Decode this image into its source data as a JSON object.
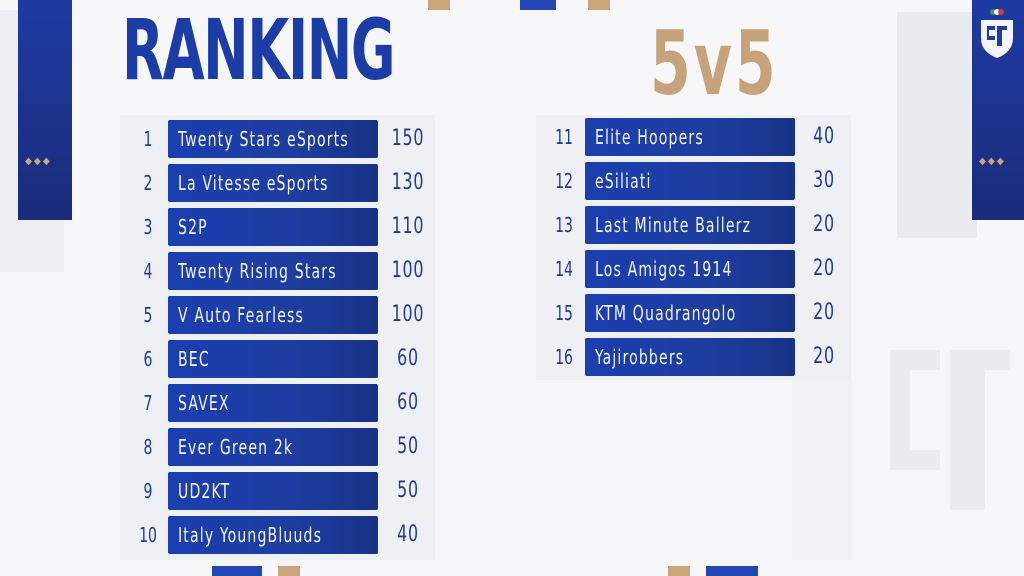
{
  "header": {
    "title": "RANKING",
    "mode": "5v5"
  },
  "colors": {
    "primary_blue": "#1c3da7",
    "gold": "#c6a37a",
    "background": "#f7f7f9"
  },
  "ranking_left": [
    {
      "rank": "1",
      "team": "Twenty Stars eSports",
      "points": "150"
    },
    {
      "rank": "2",
      "team": "La Vitesse eSports",
      "points": "130"
    },
    {
      "rank": "3",
      "team": "S2P",
      "points": "110"
    },
    {
      "rank": "4",
      "team": "Twenty Rising Stars",
      "points": "100"
    },
    {
      "rank": "5",
      "team": "V Auto Fearless",
      "points": "100"
    },
    {
      "rank": "6",
      "team": "BEC",
      "points": "60"
    },
    {
      "rank": "7",
      "team": "SAVEX",
      "points": "60"
    },
    {
      "rank": "8",
      "team": "Ever Green 2k",
      "points": "50"
    },
    {
      "rank": "9",
      "team": "UD2KT",
      "points": "50"
    },
    {
      "rank": "10",
      "team": "Italy YoungBluuds",
      "points": "40"
    }
  ],
  "ranking_right": [
    {
      "rank": "11",
      "team": "Elite Hoopers",
      "points": "40"
    },
    {
      "rank": "12",
      "team": "eSiliati",
      "points": "30"
    },
    {
      "rank": "13",
      "team": "Last Minute Ballerz",
      "points": "20"
    },
    {
      "rank": "14",
      "team": "Los Amigos 1914",
      "points": "20"
    },
    {
      "rank": "15",
      "team": "KTM Quadrangolo",
      "points": "20"
    },
    {
      "rank": "16",
      "team": "Yajirobbers",
      "points": "20"
    }
  ],
  "icons": {
    "logo": "federation-shield-icon",
    "decor": "diamond-icon"
  }
}
